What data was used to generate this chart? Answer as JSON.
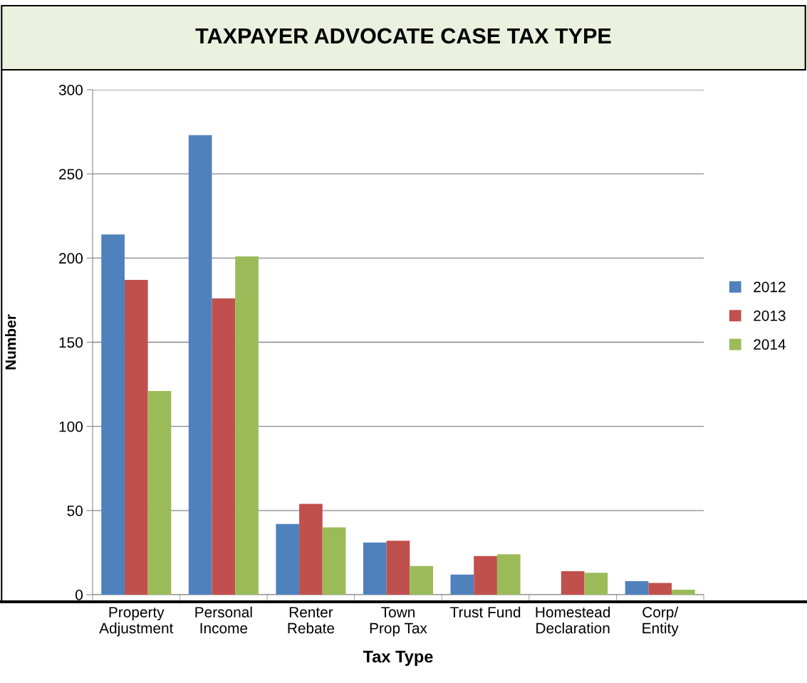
{
  "chart_data": {
    "type": "bar",
    "title": "TAXPAYER ADVOCATE CASE TAX TYPE",
    "xlabel": "Tax Type",
    "ylabel": "Number",
    "categories": [
      "Property\nAdjustment",
      "Personal\nIncome",
      "Renter\nRebate",
      "Town\nProp Tax",
      "Trust Fund",
      "Homestead\nDeclaration",
      "Corp/\nEntity"
    ],
    "series": [
      {
        "name": "2012",
        "color": "#4f81bd",
        "values": [
          214,
          273,
          42,
          31,
          12,
          0,
          8
        ]
      },
      {
        "name": "2013",
        "color": "#c0504d",
        "values": [
          187,
          176,
          54,
          32,
          23,
          14,
          7
        ]
      },
      {
        "name": "2014",
        "color": "#9bbb59",
        "values": [
          121,
          201,
          40,
          17,
          24,
          13,
          3
        ]
      }
    ],
    "ylim": [
      0,
      300
    ],
    "yticks": [
      0,
      50,
      100,
      150,
      200,
      250,
      300
    ],
    "grid": "y",
    "legend": "right"
  }
}
